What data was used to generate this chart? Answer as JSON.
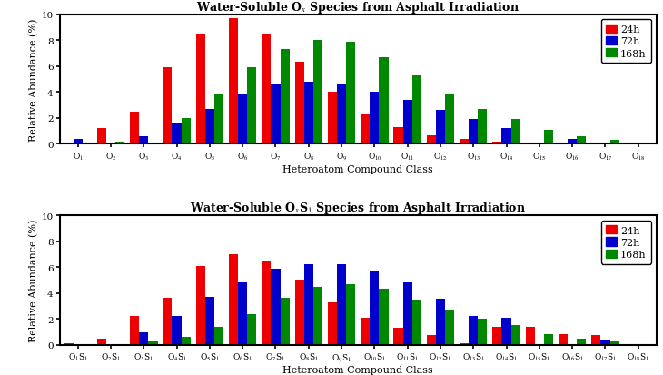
{
  "top": {
    "title": "Water-Soluble O$_x$ Species from Asphalt Irradiation",
    "categories": [
      "O$_1$",
      "O$_2$",
      "O$_3$",
      "O$_4$",
      "O$_5$",
      "O$_6$",
      "O$_7$",
      "O$_8$",
      "O$_9$",
      "O$_{10}$",
      "O$_{11}$",
      "O$_{12}$",
      "O$_{13}$",
      "O$_{14}$",
      "O$_{15}$",
      "O$_{16}$",
      "O$_{17}$",
      "O$_{18}$"
    ],
    "24h": [
      0.1,
      1.2,
      2.5,
      5.9,
      8.5,
      9.7,
      8.5,
      6.3,
      4.0,
      2.3,
      1.3,
      0.65,
      0.35,
      0.15,
      0.1,
      0.05,
      0.05,
      0.05
    ],
    "72h": [
      0.35,
      0.05,
      0.6,
      1.6,
      2.7,
      3.9,
      4.6,
      4.8,
      4.6,
      4.0,
      3.4,
      2.6,
      1.9,
      1.2,
      0.07,
      0.4,
      0.1,
      0.05
    ],
    "168h": [
      0.05,
      0.2,
      0.1,
      2.0,
      3.8,
      5.9,
      7.3,
      8.0,
      7.9,
      6.7,
      5.3,
      3.9,
      2.7,
      1.9,
      1.1,
      0.6,
      0.3,
      0.1
    ]
  },
  "bottom": {
    "title": "Water-Soluble O$_x$S$_1$ Species from Asphalt Irradiation",
    "categories": [
      "O$_1$S$_1$",
      "O$_2$S$_1$",
      "O$_3$S$_1$",
      "O$_4$S$_1$",
      "O$_5$S$_1$",
      "O$_6$S$_1$",
      "O$_7$S$_1$",
      "O$_8$S$_1$",
      "O$_9$S$_1$",
      "O$_{10}$S$_1$",
      "O$_{11}$S$_1$",
      "O$_{12}$S$_1$",
      "O$_{13}$S$_1$",
      "O$_{14}$S$_1$",
      "O$_{15}$S$_1$",
      "O$_{16}$S$_1$",
      "O$_{17}$S$_1$",
      "O$_{18}$S$_1$"
    ],
    "24h": [
      0.15,
      0.45,
      2.2,
      3.65,
      6.1,
      7.0,
      6.5,
      5.0,
      3.3,
      2.1,
      1.3,
      0.75,
      0.1,
      1.4,
      1.4,
      0.85,
      0.75,
      0.05
    ],
    "72h": [
      0.05,
      0.05,
      0.95,
      2.2,
      3.7,
      4.8,
      5.9,
      6.2,
      6.2,
      5.7,
      4.8,
      3.55,
      2.2,
      2.1,
      0.05,
      0.05,
      0.35,
      0.05
    ],
    "168h": [
      0.05,
      0.05,
      0.3,
      0.6,
      1.4,
      2.4,
      3.6,
      4.45,
      4.7,
      4.3,
      3.5,
      2.7,
      2.05,
      1.5,
      0.8,
      0.5,
      0.3,
      0.05
    ]
  },
  "colors": {
    "24h": "#EE0000",
    "72h": "#0000CC",
    "168h": "#008800"
  },
  "ylabel": "Relative Abundance (%)",
  "xlabel": "Heteroatom Compound Class",
  "ylim": [
    0,
    10
  ],
  "yticks": [
    0,
    2,
    4,
    6,
    8,
    10
  ],
  "bar_width": 0.28,
  "legend_labels": [
    "24h",
    "72h",
    "168h"
  ],
  "background_color": "#ffffff",
  "title_fontsize": 9,
  "axis_label_fontsize": 8,
  "tick_label_fontsize": 6.5,
  "legend_fontsize": 8
}
